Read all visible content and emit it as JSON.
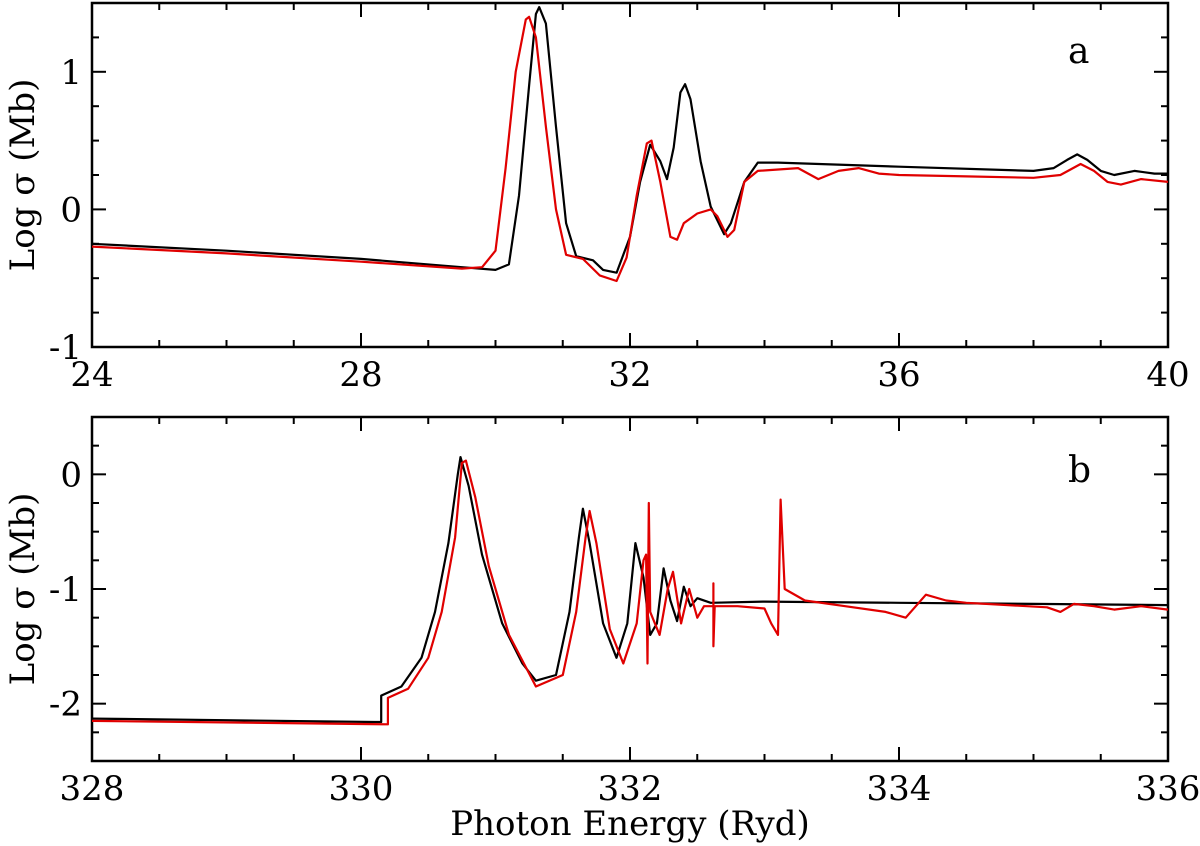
{
  "chart_data": [
    {
      "type": "line",
      "panel_label": "a",
      "xlabel": "",
      "ylabel": "Log σ (Mb)",
      "xlim": [
        24,
        40
      ],
      "ylim": [
        -1,
        1.5
      ],
      "xticks": [
        24,
        28,
        32,
        36,
        40
      ],
      "yticks": [
        -1,
        0,
        1
      ],
      "xtick_labels": [
        "24",
        "28",
        "32",
        "36",
        "40"
      ],
      "ytick_labels": [
        "-1",
        "0",
        "1"
      ],
      "grid": false,
      "series": [
        {
          "color": "#000000",
          "points": [
            [
              24,
              -0.25
            ],
            [
              26,
              -0.3
            ],
            [
              28,
              -0.36
            ],
            [
              29.5,
              -0.42
            ],
            [
              30.0,
              -0.44
            ],
            [
              30.2,
              -0.4
            ],
            [
              30.35,
              0.1
            ],
            [
              30.5,
              0.9
            ],
            [
              30.6,
              1.42
            ],
            [
              30.65,
              1.47
            ],
            [
              30.75,
              1.35
            ],
            [
              30.9,
              0.6
            ],
            [
              31.05,
              -0.1
            ],
            [
              31.2,
              -0.34
            ],
            [
              31.45,
              -0.37
            ],
            [
              31.6,
              -0.44
            ],
            [
              31.8,
              -0.46
            ],
            [
              32.0,
              -0.2
            ],
            [
              32.15,
              0.2
            ],
            [
              32.3,
              0.47
            ],
            [
              32.45,
              0.35
            ],
            [
              32.55,
              0.22
            ],
            [
              32.65,
              0.45
            ],
            [
              32.75,
              0.85
            ],
            [
              32.82,
              0.91
            ],
            [
              32.9,
              0.8
            ],
            [
              33.05,
              0.35
            ],
            [
              33.2,
              0.02
            ],
            [
              33.4,
              -0.18
            ],
            [
              33.5,
              -0.1
            ],
            [
              33.7,
              0.2
            ],
            [
              33.9,
              0.34
            ],
            [
              34.2,
              0.34
            ],
            [
              36,
              0.31
            ],
            [
              38,
              0.28
            ],
            [
              38.3,
              0.3
            ],
            [
              38.5,
              0.36
            ],
            [
              38.65,
              0.4
            ],
            [
              38.8,
              0.36
            ],
            [
              39.0,
              0.28
            ],
            [
              39.2,
              0.25
            ],
            [
              39.5,
              0.28
            ],
            [
              39.8,
              0.26
            ],
            [
              40,
              0.26
            ]
          ]
        },
        {
          "color": "#e00000",
          "points": [
            [
              24,
              -0.27
            ],
            [
              26,
              -0.32
            ],
            [
              28,
              -0.38
            ],
            [
              29.5,
              -0.43
            ],
            [
              29.8,
              -0.42
            ],
            [
              30.0,
              -0.3
            ],
            [
              30.15,
              0.3
            ],
            [
              30.3,
              1.0
            ],
            [
              30.45,
              1.38
            ],
            [
              30.5,
              1.4
            ],
            [
              30.6,
              1.25
            ],
            [
              30.75,
              0.6
            ],
            [
              30.9,
              0.0
            ],
            [
              31.05,
              -0.33
            ],
            [
              31.3,
              -0.36
            ],
            [
              31.55,
              -0.48
            ],
            [
              31.8,
              -0.52
            ],
            [
              31.95,
              -0.35
            ],
            [
              32.1,
              0.1
            ],
            [
              32.25,
              0.48
            ],
            [
              32.32,
              0.5
            ],
            [
              32.45,
              0.2
            ],
            [
              32.6,
              -0.2
            ],
            [
              32.7,
              -0.22
            ],
            [
              32.8,
              -0.1
            ],
            [
              33.0,
              -0.03
            ],
            [
              33.2,
              0.0
            ],
            [
              33.3,
              -0.05
            ],
            [
              33.45,
              -0.2
            ],
            [
              33.55,
              -0.15
            ],
            [
              33.7,
              0.2
            ],
            [
              33.9,
              0.28
            ],
            [
              34.5,
              0.3
            ],
            [
              34.8,
              0.22
            ],
            [
              35.1,
              0.28
            ],
            [
              35.4,
              0.3
            ],
            [
              35.7,
              0.26
            ],
            [
              36,
              0.25
            ],
            [
              37,
              0.24
            ],
            [
              38,
              0.23
            ],
            [
              38.4,
              0.25
            ],
            [
              38.7,
              0.33
            ],
            [
              38.9,
              0.28
            ],
            [
              39.1,
              0.2
            ],
            [
              39.3,
              0.18
            ],
            [
              39.6,
              0.22
            ],
            [
              40,
              0.2
            ]
          ]
        }
      ]
    },
    {
      "type": "line",
      "panel_label": "b",
      "xlabel": "Photon Energy (Ryd)",
      "ylabel": "Log σ (Mb)",
      "xlim": [
        328,
        336
      ],
      "ylim": [
        -2.5,
        0.5
      ],
      "xticks": [
        328,
        330,
        332,
        334,
        336
      ],
      "yticks": [
        -2,
        -1,
        0
      ],
      "xtick_labels": [
        "328",
        "330",
        "332",
        "334",
        "336"
      ],
      "ytick_labels": [
        "-2",
        "-1",
        "0"
      ],
      "grid": false,
      "series": [
        {
          "color": "#000000",
          "points": [
            [
              328,
              -2.13
            ],
            [
              330.1,
              -2.16
            ],
            [
              330.15,
              -2.16
            ],
            [
              330.15,
              -1.93
            ],
            [
              330.3,
              -1.85
            ],
            [
              330.45,
              -1.6
            ],
            [
              330.55,
              -1.2
            ],
            [
              330.65,
              -0.6
            ],
            [
              330.72,
              0.0
            ],
            [
              330.74,
              0.15
            ],
            [
              330.8,
              -0.1
            ],
            [
              330.9,
              -0.7
            ],
            [
              331.05,
              -1.3
            ],
            [
              331.2,
              -1.65
            ],
            [
              331.3,
              -1.8
            ],
            [
              331.45,
              -1.75
            ],
            [
              331.55,
              -1.2
            ],
            [
              331.62,
              -0.55
            ],
            [
              331.65,
              -0.3
            ],
            [
              331.7,
              -0.6
            ],
            [
              331.8,
              -1.3
            ],
            [
              331.9,
              -1.6
            ],
            [
              331.98,
              -1.3
            ],
            [
              332.04,
              -0.6
            ],
            [
              332.1,
              -0.9
            ],
            [
              332.15,
              -1.4
            ],
            [
              332.2,
              -1.3
            ],
            [
              332.25,
              -0.82
            ],
            [
              332.3,
              -1.1
            ],
            [
              332.35,
              -1.28
            ],
            [
              332.4,
              -0.98
            ],
            [
              332.45,
              -1.15
            ],
            [
              332.5,
              -1.08
            ],
            [
              332.6,
              -1.12
            ],
            [
              333,
              -1.11
            ],
            [
              334,
              -1.12
            ],
            [
              335,
              -1.13
            ],
            [
              336,
              -1.14
            ]
          ]
        },
        {
          "color": "#e00000",
          "points": [
            [
              328,
              -2.15
            ],
            [
              330.2,
              -2.18
            ],
            [
              330.2,
              -1.95
            ],
            [
              330.35,
              -1.87
            ],
            [
              330.5,
              -1.6
            ],
            [
              330.6,
              -1.2
            ],
            [
              330.7,
              -0.55
            ],
            [
              330.75,
              0.1
            ],
            [
              330.78,
              0.12
            ],
            [
              330.85,
              -0.2
            ],
            [
              330.95,
              -0.8
            ],
            [
              331.1,
              -1.4
            ],
            [
              331.3,
              -1.85
            ],
            [
              331.5,
              -1.75
            ],
            [
              331.6,
              -1.2
            ],
            [
              331.67,
              -0.55
            ],
            [
              331.7,
              -0.32
            ],
            [
              331.75,
              -0.6
            ],
            [
              331.85,
              -1.35
            ],
            [
              331.95,
              -1.65
            ],
            [
              332.05,
              -1.3
            ],
            [
              332.1,
              -0.75
            ],
            [
              332.12,
              -0.7
            ],
            [
              332.13,
              -1.65
            ],
            [
              332.14,
              -0.25
            ],
            [
              332.15,
              -1.2
            ],
            [
              332.22,
              -1.4
            ],
            [
              332.28,
              -1.0
            ],
            [
              332.32,
              -0.85
            ],
            [
              332.38,
              -1.3
            ],
            [
              332.44,
              -1.0
            ],
            [
              332.5,
              -1.25
            ],
            [
              332.55,
              -1.15
            ],
            [
              332.62,
              -1.15
            ],
            [
              332.62,
              -0.95
            ],
            [
              332.62,
              -1.5
            ],
            [
              332.63,
              -1.15
            ],
            [
              332.8,
              -1.15
            ],
            [
              333.0,
              -1.17
            ],
            [
              333.05,
              -1.3
            ],
            [
              333.1,
              -1.4
            ],
            [
              333.12,
              -0.22
            ],
            [
              333.15,
              -1.0
            ],
            [
              333.3,
              -1.1
            ],
            [
              333.6,
              -1.15
            ],
            [
              333.9,
              -1.2
            ],
            [
              334.05,
              -1.25
            ],
            [
              334.2,
              -1.05
            ],
            [
              334.35,
              -1.1
            ],
            [
              334.5,
              -1.12
            ],
            [
              335.1,
              -1.16
            ],
            [
              335.2,
              -1.2
            ],
            [
              335.3,
              -1.13
            ],
            [
              335.45,
              -1.15
            ],
            [
              335.6,
              -1.18
            ],
            [
              335.8,
              -1.15
            ],
            [
              336,
              -1.18
            ]
          ]
        }
      ]
    }
  ]
}
